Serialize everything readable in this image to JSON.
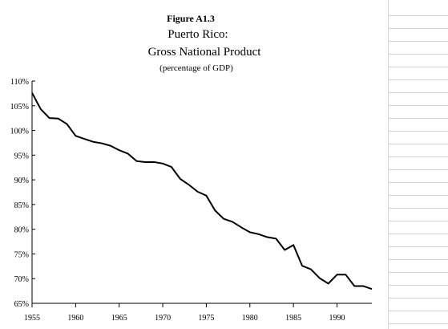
{
  "chart_data": {
    "type": "line",
    "figure_label": "Figure A1.3",
    "title": "Puerto Rico:",
    "subtitle": "Gross National Product",
    "units_note": "(percentage of GDP)",
    "xlabel": "",
    "ylabel": "",
    "xlim": [
      1955,
      1994
    ],
    "ylim": [
      65,
      110
    ],
    "x_ticks": [
      1955,
      1960,
      1965,
      1970,
      1975,
      1980,
      1985,
      1990
    ],
    "x_tick_labels": [
      "1955",
      "1960",
      "1965",
      "1970",
      "1975",
      "1980",
      "1985",
      "1990"
    ],
    "y_ticks": [
      65,
      70,
      75,
      80,
      85,
      90,
      95,
      100,
      105,
      110
    ],
    "y_tick_labels": [
      "65%",
      "70%",
      "75%",
      "80%",
      "85%",
      "90%",
      "95%",
      "100%",
      "105%",
      "110%"
    ],
    "grid": false,
    "legend": "none",
    "series": [
      {
        "x": [
          1955,
          1956,
          1957,
          1958,
          1959,
          1960,
          1961,
          1962,
          1963,
          1964,
          1965,
          1966,
          1967,
          1968,
          1969,
          1970,
          1971,
          1972,
          1973,
          1974,
          1975,
          1976,
          1977,
          1978,
          1979,
          1980,
          1981,
          1982,
          1983,
          1984,
          1985,
          1986,
          1987,
          1988,
          1989,
          1990,
          1991,
          1992,
          1993,
          1994
        ],
        "values": [
          107.6,
          104.3,
          102.5,
          102.4,
          101.3,
          98.9,
          98.3,
          97.7,
          97.4,
          96.9,
          96.0,
          95.3,
          93.8,
          93.6,
          93.6,
          93.3,
          92.6,
          90.2,
          89.0,
          87.6,
          86.8,
          83.8,
          82.1,
          81.5,
          80.4,
          79.4,
          79.0,
          78.4,
          78.1,
          75.8,
          76.8,
          72.6,
          71.9,
          70.1,
          69.0,
          70.8,
          70.8,
          68.5,
          68.5,
          67.9
        ],
        "color": "#000000"
      }
    ]
  }
}
